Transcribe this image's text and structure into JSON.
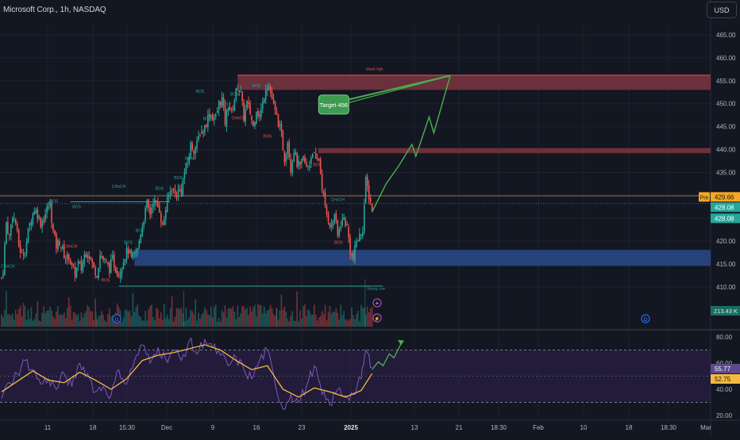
{
  "header": {
    "title": "Microsoft Corp., 1h, NASDAQ",
    "currency_label": "USD"
  },
  "colors": {
    "background": "#131722",
    "bull_candle": "#26a69a",
    "bear_candle": "#ef5350",
    "supply_zone": "#7a3540",
    "demand_zone": "#2a4a8a",
    "projection": "#4caf50",
    "rsi_line": "#7e57c2",
    "rsi_ma": "#f5b942",
    "rsi_band": "#2a1f45",
    "orange_line": "#e08a3c"
  },
  "chart_data": [
    {
      "type": "candlestick",
      "symbol": "Microsoft Corp.",
      "interval": "1h",
      "exchange": "NASDAQ",
      "currency": "USD",
      "ylim": [
        407,
        468
      ],
      "price_ticks": [
        "465.00",
        "460.00",
        "455.00",
        "450.00",
        "445.00",
        "440.00",
        "435.00",
        "430.00",
        "425.00",
        "420.00",
        "415.00",
        "410.00"
      ],
      "time_ticks": [
        "11",
        "18",
        "15:30",
        "Dec",
        "9",
        "16",
        "23",
        "2025",
        "13",
        "21",
        "18:30",
        "Feb",
        "10",
        "18",
        "18:30",
        "Mar"
      ],
      "close_path": [
        {
          "t": 0,
          "p": 412
        },
        {
          "t": 2,
          "p": 414
        },
        {
          "t": 6,
          "p": 424
        },
        {
          "t": 10,
          "p": 421
        },
        {
          "t": 14,
          "p": 426
        },
        {
          "t": 18,
          "p": 424
        },
        {
          "t": 22,
          "p": 419
        },
        {
          "t": 26,
          "p": 417
        },
        {
          "t": 30,
          "p": 418
        },
        {
          "t": 34,
          "p": 422
        },
        {
          "t": 38,
          "p": 425
        },
        {
          "t": 42,
          "p": 427
        },
        {
          "t": 46,
          "p": 426
        },
        {
          "t": 50,
          "p": 424
        },
        {
          "t": 54,
          "p": 425
        },
        {
          "t": 58,
          "p": 427
        },
        {
          "t": 62,
          "p": 428
        },
        {
          "t": 66,
          "p": 422
        },
        {
          "t": 70,
          "p": 419
        },
        {
          "t": 74,
          "p": 420
        },
        {
          "t": 78,
          "p": 418
        },
        {
          "t": 82,
          "p": 416
        },
        {
          "t": 86,
          "p": 417
        },
        {
          "t": 90,
          "p": 414
        },
        {
          "t": 94,
          "p": 413
        },
        {
          "t": 98,
          "p": 415
        },
        {
          "t": 102,
          "p": 414
        },
        {
          "t": 106,
          "p": 417
        },
        {
          "t": 110,
          "p": 418
        },
        {
          "t": 114,
          "p": 416
        },
        {
          "t": 118,
          "p": 414
        },
        {
          "t": 122,
          "p": 413
        },
        {
          "t": 126,
          "p": 417
        },
        {
          "t": 130,
          "p": 416
        },
        {
          "t": 134,
          "p": 415
        },
        {
          "t": 138,
          "p": 414
        },
        {
          "t": 142,
          "p": 416
        },
        {
          "t": 146,
          "p": 414
        },
        {
          "t": 150,
          "p": 413
        },
        {
          "t": 154,
          "p": 415
        },
        {
          "t": 158,
          "p": 417
        },
        {
          "t": 162,
          "p": 418
        },
        {
          "t": 166,
          "p": 416
        },
        {
          "t": 170,
          "p": 417
        },
        {
          "t": 174,
          "p": 418
        },
        {
          "t": 178,
          "p": 422
        },
        {
          "t": 182,
          "p": 425
        },
        {
          "t": 186,
          "p": 428
        },
        {
          "t": 190,
          "p": 426
        },
        {
          "t": 194,
          "p": 429
        },
        {
          "t": 198,
          "p": 428
        },
        {
          "t": 202,
          "p": 427
        },
        {
          "t": 206,
          "p": 423
        },
        {
          "t": 210,
          "p": 427
        },
        {
          "t": 214,
          "p": 430
        },
        {
          "t": 218,
          "p": 432
        },
        {
          "t": 222,
          "p": 430
        },
        {
          "t": 226,
          "p": 431
        },
        {
          "t": 230,
          "p": 431
        },
        {
          "t": 234,
          "p": 435
        },
        {
          "t": 238,
          "p": 437
        },
        {
          "t": 242,
          "p": 441
        },
        {
          "t": 246,
          "p": 440
        },
        {
          "t": 250,
          "p": 441
        },
        {
          "t": 254,
          "p": 444
        },
        {
          "t": 258,
          "p": 444
        },
        {
          "t": 262,
          "p": 446
        },
        {
          "t": 266,
          "p": 448
        },
        {
          "t": 270,
          "p": 447
        },
        {
          "t": 274,
          "p": 447
        },
        {
          "t": 278,
          "p": 450
        },
        {
          "t": 282,
          "p": 451
        },
        {
          "t": 286,
          "p": 446
        },
        {
          "t": 290,
          "p": 450
        },
        {
          "t": 294,
          "p": 448
        },
        {
          "t": 298,
          "p": 451
        },
        {
          "t": 302,
          "p": 454
        },
        {
          "t": 306,
          "p": 452
        },
        {
          "t": 310,
          "p": 447
        },
        {
          "t": 314,
          "p": 450
        },
        {
          "t": 318,
          "p": 448
        },
        {
          "t": 322,
          "p": 445
        },
        {
          "t": 326,
          "p": 449
        },
        {
          "t": 330,
          "p": 447
        },
        {
          "t": 334,
          "p": 450
        },
        {
          "t": 338,
          "p": 454
        },
        {
          "t": 342,
          "p": 454
        },
        {
          "t": 346,
          "p": 451
        },
        {
          "t": 350,
          "p": 448
        },
        {
          "t": 354,
          "p": 446
        },
        {
          "t": 358,
          "p": 443
        },
        {
          "t": 362,
          "p": 438
        },
        {
          "t": 366,
          "p": 442
        },
        {
          "t": 370,
          "p": 436
        },
        {
          "t": 374,
          "p": 440
        },
        {
          "t": 378,
          "p": 437
        },
        {
          "t": 382,
          "p": 436
        },
        {
          "t": 386,
          "p": 438
        },
        {
          "t": 390,
          "p": 436
        },
        {
          "t": 394,
          "p": 437
        },
        {
          "t": 398,
          "p": 440
        },
        {
          "t": 402,
          "p": 437
        },
        {
          "t": 406,
          "p": 438
        },
        {
          "t": 410,
          "p": 432
        },
        {
          "t": 414,
          "p": 427
        },
        {
          "t": 418,
          "p": 425
        },
        {
          "t": 422,
          "p": 423
        },
        {
          "t": 426,
          "p": 426
        },
        {
          "t": 430,
          "p": 421
        },
        {
          "t": 434,
          "p": 424
        },
        {
          "t": 438,
          "p": 425
        },
        {
          "t": 442,
          "p": 423
        },
        {
          "t": 446,
          "p": 418
        },
        {
          "t": 450,
          "p": 416
        },
        {
          "t": 454,
          "p": 420
        },
        {
          "t": 458,
          "p": 421
        },
        {
          "t": 462,
          "p": 423
        },
        {
          "t": 466,
          "p": 433
        },
        {
          "t": 470,
          "p": 430
        },
        {
          "t": 474,
          "p": 427
        }
      ],
      "price_labels": [
        {
          "key": "pre",
          "label": "Pre",
          "value": "429.66",
          "price": 429.66
        },
        {
          "key": "last_a",
          "value": "428.08",
          "price": 428.08
        },
        {
          "key": "last_b",
          "value": "428.08",
          "price": 425.6
        }
      ],
      "volume_label": "213.43 K",
      "zones": [
        {
          "name": "Weak High",
          "from": 453.0,
          "to": 456.2,
          "start_t": 302,
          "kind": "supply"
        },
        {
          "name": "",
          "from": 439.2,
          "to": 440.3,
          "start_t": 405,
          "kind": "supply"
        },
        {
          "name": "",
          "from": 414.6,
          "to": 418.1,
          "start_t": 170,
          "kind": "demand"
        }
      ],
      "annotations": [
        {
          "text": "Weak High",
          "t": 477,
          "p": 457.3,
          "color": "#ef5350"
        },
        {
          "text": "Strong Low",
          "t": 479,
          "p": 409.4,
          "color": "#26a69a"
        },
        {
          "text": "CHoCH",
          "t": 150,
          "p": 431.6,
          "color": "#26a69a"
        },
        {
          "text": "CHoCH",
          "t": 8,
          "p": 414.2,
          "color": "#26a69a"
        },
        {
          "text": "CHoCH",
          "t": 88,
          "p": 418.6,
          "color": "#ef5350"
        },
        {
          "text": "CHoCH",
          "t": 430,
          "p": 428.8,
          "color": "#26a69a"
        },
        {
          "text": "CHoCH",
          "t": 303,
          "p": 446.6,
          "color": "#ef5350"
        },
        {
          "text": "BOS",
          "t": 67,
          "p": 428.4,
          "color": "#26a69a"
        },
        {
          "text": "BOS",
          "t": 96,
          "p": 427.2,
          "color": "#26a69a"
        },
        {
          "text": "BOS",
          "t": 162,
          "p": 419.4,
          "color": "#26a69a"
        },
        {
          "text": "BOS",
          "t": 177,
          "p": 422.0,
          "color": "#26a69a"
        },
        {
          "text": "BOS",
          "t": 202,
          "p": 431.2,
          "color": "#26a69a"
        },
        {
          "text": "BOS",
          "t": 226,
          "p": 433.5,
          "color": "#26a69a"
        },
        {
          "text": "BOS",
          "t": 240,
          "p": 437.8,
          "color": "#26a69a"
        },
        {
          "text": "BOS",
          "t": 263,
          "p": 446.4,
          "color": "#26a69a"
        },
        {
          "text": "BOS",
          "t": 285,
          "p": 449.6,
          "color": "#26a69a"
        },
        {
          "text": "BOS",
          "t": 298,
          "p": 451.8,
          "color": "#26a69a"
        },
        {
          "text": "BOS",
          "t": 326,
          "p": 453.6,
          "color": "#26a69a"
        },
        {
          "text": "BOS",
          "t": 340,
          "p": 442.6,
          "color": "#ef5350"
        },
        {
          "text": "BOS",
          "t": 404,
          "p": 436.4,
          "color": "#ef5350"
        },
        {
          "text": "BOS",
          "t": 431,
          "p": 419.4,
          "color": "#ef5350"
        },
        {
          "text": "BOS",
          "t": 133,
          "p": 411.2,
          "color": "#ef5350"
        },
        {
          "text": "BOS",
          "t": 254,
          "p": 452.4,
          "color": "#26a69a"
        }
      ],
      "target_label": {
        "text": "Target 456",
        "t": 428,
        "p": 449.8
      },
      "projection": [
        {
          "t": 474,
          "p": 426.4
        },
        {
          "t": 492,
          "p": 432.5
        },
        {
          "t": 508,
          "p": 436.4
        },
        {
          "t": 525,
          "p": 441.1
        },
        {
          "t": 530,
          "p": 438.5
        },
        {
          "t": 547,
          "p": 447.1
        },
        {
          "t": 553,
          "p": 443.6
        },
        {
          "t": 574,
          "p": 456.1
        }
      ],
      "target_line": {
        "from_t": 444,
        "from_p": 450.9,
        "to_t": 574,
        "to_p": 456.1
      }
    },
    {
      "type": "line",
      "name": "RSI",
      "ylim": [
        18,
        85
      ],
      "ticks": [
        "80.00",
        "60.00",
        "40.00",
        "20.00"
      ],
      "bands": [
        70,
        30
      ],
      "mid": 50,
      "current_rsi": "55.77",
      "current_ma": "52.75",
      "rsi": [
        {
          "t": 0,
          "v": 33
        },
        {
          "t": 10,
          "v": 45
        },
        {
          "t": 20,
          "v": 52
        },
        {
          "t": 30,
          "v": 62
        },
        {
          "t": 40,
          "v": 55
        },
        {
          "t": 50,
          "v": 44
        },
        {
          "t": 60,
          "v": 48
        },
        {
          "t": 70,
          "v": 40
        },
        {
          "t": 80,
          "v": 52
        },
        {
          "t": 90,
          "v": 42
        },
        {
          "t": 100,
          "v": 60
        },
        {
          "t": 110,
          "v": 52
        },
        {
          "t": 120,
          "v": 38
        },
        {
          "t": 130,
          "v": 42
        },
        {
          "t": 140,
          "v": 35
        },
        {
          "t": 150,
          "v": 55
        },
        {
          "t": 160,
          "v": 44
        },
        {
          "t": 170,
          "v": 62
        },
        {
          "t": 180,
          "v": 74
        },
        {
          "t": 190,
          "v": 60
        },
        {
          "t": 200,
          "v": 72
        },
        {
          "t": 210,
          "v": 63
        },
        {
          "t": 220,
          "v": 70
        },
        {
          "t": 230,
          "v": 62
        },
        {
          "t": 240,
          "v": 77
        },
        {
          "t": 250,
          "v": 67
        },
        {
          "t": 260,
          "v": 78
        },
        {
          "t": 270,
          "v": 72
        },
        {
          "t": 280,
          "v": 66
        },
        {
          "t": 290,
          "v": 58
        },
        {
          "t": 300,
          "v": 64
        },
        {
          "t": 310,
          "v": 55
        },
        {
          "t": 320,
          "v": 48
        },
        {
          "t": 330,
          "v": 62
        },
        {
          "t": 340,
          "v": 70
        },
        {
          "t": 350,
          "v": 44
        },
        {
          "t": 360,
          "v": 25
        },
        {
          "t": 370,
          "v": 36
        },
        {
          "t": 380,
          "v": 30
        },
        {
          "t": 390,
          "v": 42
        },
        {
          "t": 400,
          "v": 58
        },
        {
          "t": 410,
          "v": 36
        },
        {
          "t": 420,
          "v": 28
        },
        {
          "t": 430,
          "v": 40
        },
        {
          "t": 440,
          "v": 35
        },
        {
          "t": 450,
          "v": 36
        },
        {
          "t": 460,
          "v": 48
        },
        {
          "t": 466,
          "v": 70
        },
        {
          "t": 474,
          "v": 57
        }
      ],
      "ma": [
        {
          "t": 0,
          "v": 38
        },
        {
          "t": 20,
          "v": 46
        },
        {
          "t": 40,
          "v": 54
        },
        {
          "t": 60,
          "v": 47
        },
        {
          "t": 80,
          "v": 45
        },
        {
          "t": 100,
          "v": 53
        },
        {
          "t": 120,
          "v": 47
        },
        {
          "t": 140,
          "v": 40
        },
        {
          "t": 160,
          "v": 48
        },
        {
          "t": 180,
          "v": 62
        },
        {
          "t": 200,
          "v": 66
        },
        {
          "t": 220,
          "v": 68
        },
        {
          "t": 240,
          "v": 71
        },
        {
          "t": 260,
          "v": 74
        },
        {
          "t": 280,
          "v": 70
        },
        {
          "t": 300,
          "v": 62
        },
        {
          "t": 320,
          "v": 55
        },
        {
          "t": 340,
          "v": 58
        },
        {
          "t": 360,
          "v": 40
        },
        {
          "t": 380,
          "v": 34
        },
        {
          "t": 400,
          "v": 41
        },
        {
          "t": 420,
          "v": 38
        },
        {
          "t": 440,
          "v": 34
        },
        {
          "t": 460,
          "v": 39
        },
        {
          "t": 474,
          "v": 52
        }
      ],
      "projection": [
        {
          "t": 474,
          "v": 55
        },
        {
          "t": 482,
          "v": 61
        },
        {
          "t": 488,
          "v": 58
        },
        {
          "t": 496,
          "v": 67
        },
        {
          "t": 502,
          "v": 64
        },
        {
          "t": 512,
          "v": 76
        }
      ]
    }
  ]
}
